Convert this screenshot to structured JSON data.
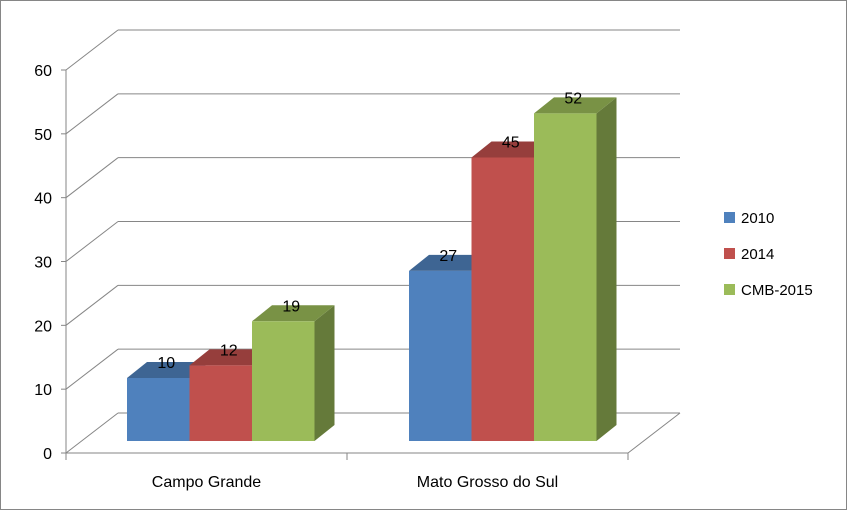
{
  "chart_data": {
    "type": "bar",
    "subtype": "3d-clustered-column",
    "title": "",
    "xlabel": "",
    "ylabel": "",
    "categories": [
      "Campo Grande",
      "Mato Grosso do Sul"
    ],
    "series": [
      {
        "name": "2010",
        "values": [
          10,
          27
        ],
        "color": "#4F81BD"
      },
      {
        "name": "2014",
        "values": [
          12,
          45
        ],
        "color": "#C0504D"
      },
      {
        "name": "CMB-2015",
        "values": [
          19,
          52
        ],
        "color": "#9BBB59"
      }
    ],
    "ylim": [
      0,
      60
    ],
    "yticks": [
      "0",
      "10",
      "20",
      "30",
      "40",
      "50",
      "60"
    ],
    "grid": true,
    "data_labels": true,
    "legend": "right"
  }
}
